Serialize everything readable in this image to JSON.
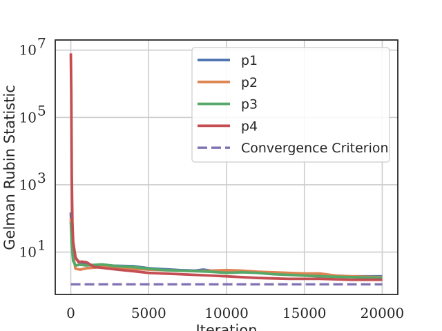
{
  "chart_data": {
    "type": "line",
    "xlabel": "Iteration",
    "ylabel": "Gelman Rubin Statistic",
    "yscale": "log",
    "xlim": [
      -1000,
      21000
    ],
    "ylim": [
      0.55,
      20000000
    ],
    "x_ticks": [
      {
        "value": 0,
        "label": "0"
      },
      {
        "value": 5000,
        "label": "5000"
      },
      {
        "value": 10000,
        "label": "10000"
      },
      {
        "value": 15000,
        "label": "15000"
      },
      {
        "value": 20000,
        "label": "20000"
      }
    ],
    "y_ticks": [
      {
        "value": 10,
        "base": "10",
        "exp": "1"
      },
      {
        "value": 1000,
        "base": "10",
        "exp": "3"
      },
      {
        "value": 100000,
        "base": "10",
        "exp": "5"
      },
      {
        "value": 10000000,
        "base": "10",
        "exp": "7"
      }
    ],
    "grid": true,
    "legend_position": "top-right",
    "series": [
      {
        "name": "p1",
        "color": "#4c72b0",
        "style": "solid",
        "points": [
          [
            0,
            150
          ],
          [
            50,
            40
          ],
          [
            150,
            15
          ],
          [
            300,
            6.5
          ],
          [
            600,
            4.8
          ],
          [
            1000,
            4.2
          ],
          [
            2000,
            4.0
          ],
          [
            3000,
            3.9
          ],
          [
            4000,
            3.8
          ],
          [
            5000,
            3.3
          ],
          [
            6000,
            3.1
          ],
          [
            7000,
            2.9
          ],
          [
            8000,
            2.8
          ],
          [
            8500,
            3.0
          ],
          [
            9000,
            2.8
          ],
          [
            10000,
            2.6
          ],
          [
            12000,
            2.5
          ],
          [
            14000,
            2.3
          ],
          [
            15000,
            2.2
          ],
          [
            16000,
            2.0
          ],
          [
            18000,
            1.9
          ],
          [
            20000,
            1.9
          ]
        ]
      },
      {
        "name": "p2",
        "color": "#dd8452",
        "style": "solid",
        "points": [
          [
            0,
            100
          ],
          [
            50,
            30
          ],
          [
            150,
            8
          ],
          [
            300,
            3.2
          ],
          [
            600,
            3.0
          ],
          [
            1000,
            3.3
          ],
          [
            2000,
            3.6
          ],
          [
            3000,
            3.3
          ],
          [
            4000,
            3.2
          ],
          [
            5000,
            3.0
          ],
          [
            6000,
            2.9
          ],
          [
            7000,
            2.8
          ],
          [
            8000,
            2.7
          ],
          [
            9000,
            2.8
          ],
          [
            10000,
            2.9
          ],
          [
            11000,
            2.8
          ],
          [
            12000,
            2.6
          ],
          [
            13000,
            2.5
          ],
          [
            14000,
            2.4
          ],
          [
            15000,
            2.3
          ],
          [
            16000,
            2.3
          ],
          [
            17000,
            2.0
          ],
          [
            18000,
            1.9
          ],
          [
            20000,
            1.8
          ]
        ]
      },
      {
        "name": "p3",
        "color": "#55a868",
        "style": "solid",
        "points": [
          [
            0,
            80
          ],
          [
            50,
            20
          ],
          [
            150,
            5.5
          ],
          [
            300,
            4.0
          ],
          [
            600,
            4.2
          ],
          [
            1000,
            4.0
          ],
          [
            2000,
            4.3
          ],
          [
            3000,
            3.8
          ],
          [
            4000,
            3.6
          ],
          [
            5000,
            3.2
          ],
          [
            6000,
            2.9
          ],
          [
            7000,
            2.8
          ],
          [
            8000,
            2.7
          ],
          [
            9000,
            2.6
          ],
          [
            10000,
            2.4
          ],
          [
            11000,
            2.5
          ],
          [
            12000,
            2.4
          ],
          [
            13000,
            2.2
          ],
          [
            14000,
            2.1
          ],
          [
            15000,
            2.0
          ],
          [
            16000,
            1.9
          ],
          [
            18000,
            1.8
          ],
          [
            20000,
            1.7
          ]
        ]
      },
      {
        "name": "p4",
        "color": "#c44e52",
        "style": "solid",
        "points": [
          [
            0,
            8000000
          ],
          [
            30,
            500000
          ],
          [
            60,
            2000
          ],
          [
            100,
            80
          ],
          [
            150,
            20
          ],
          [
            300,
            7
          ],
          [
            500,
            5
          ],
          [
            700,
            5.2
          ],
          [
            1000,
            5.0
          ],
          [
            1500,
            3.6
          ],
          [
            2000,
            3.4
          ],
          [
            3000,
            3.0
          ],
          [
            4000,
            2.7
          ],
          [
            5000,
            2.4
          ],
          [
            6000,
            2.3
          ],
          [
            7000,
            2.2
          ],
          [
            8000,
            2.1
          ],
          [
            9000,
            2.0
          ],
          [
            10000,
            1.9
          ],
          [
            12000,
            1.7
          ],
          [
            14000,
            1.6
          ],
          [
            16000,
            1.6
          ],
          [
            18000,
            1.5
          ],
          [
            20000,
            1.5
          ]
        ]
      },
      {
        "name": "Convergence Criterion",
        "color": "#8172b3",
        "style": "dashed",
        "points": [
          [
            0,
            1.1
          ],
          [
            20000,
            1.1
          ]
        ]
      }
    ]
  }
}
